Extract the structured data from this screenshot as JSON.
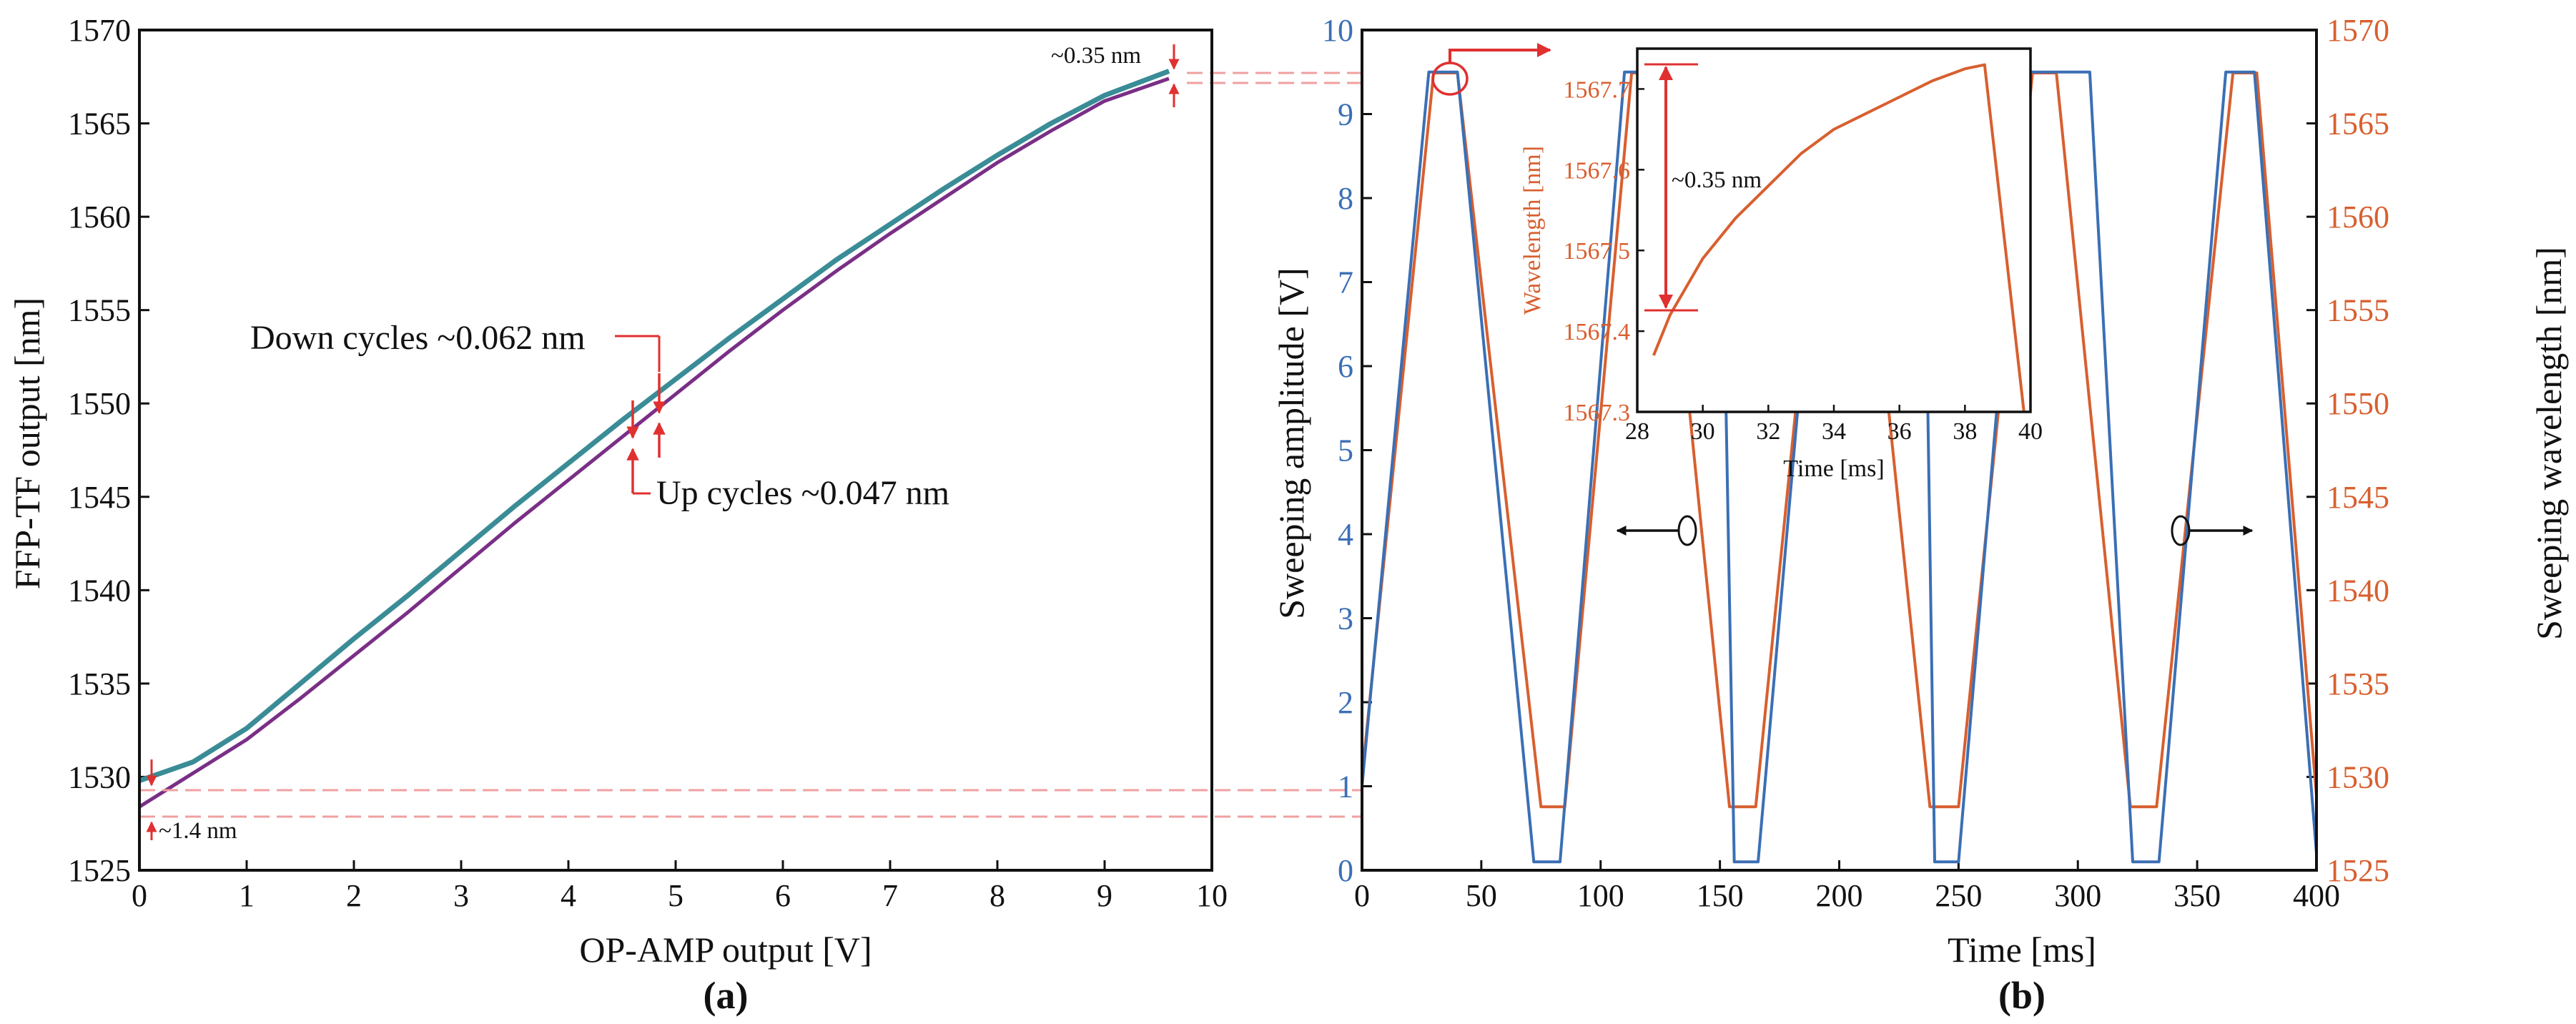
{
  "colors": {
    "blue": "#3b6fb5",
    "orange": "#d85f2f",
    "red": "#e03030",
    "teal": "#3a8c96",
    "purple": "#7a2f86",
    "axis": "#111111"
  },
  "chart_data": [
    {
      "type": "line",
      "panel_label": "(a)",
      "xlabel": "OP-AMP output [V]",
      "ylabel": "FFP-TF output [nm]",
      "xlim": [
        0,
        10
      ],
      "ylim": [
        1525,
        1570
      ],
      "xticks": [
        "0",
        "1",
        "2",
        "3",
        "4",
        "5",
        "6",
        "7",
        "8",
        "9",
        "10"
      ],
      "yticks": [
        "1525",
        "1530",
        "1535",
        "1540",
        "1545",
        "1550",
        "1555",
        "1560",
        "1565",
        "1570"
      ],
      "series": [
        {
          "name": "Down cycles",
          "x": [
            0,
            0.5,
            1,
            1.5,
            2,
            2.5,
            3,
            3.5,
            4,
            4.5,
            5,
            5.5,
            6,
            6.5,
            7,
            7.5,
            8,
            8.5,
            9,
            9.6
          ],
          "y": [
            1529.8,
            1530.8,
            1532.6,
            1535.0,
            1537.4,
            1539.7,
            1542.1,
            1544.5,
            1546.8,
            1549.1,
            1551.3,
            1553.5,
            1555.6,
            1557.7,
            1559.6,
            1561.5,
            1563.3,
            1565.0,
            1566.5,
            1567.8
          ]
        },
        {
          "name": "Up cycles",
          "x": [
            0,
            0.5,
            1,
            1.5,
            2,
            2.5,
            3,
            3.5,
            4,
            4.5,
            5,
            5.5,
            6,
            6.5,
            7,
            7.5,
            8,
            8.5,
            9,
            9.6
          ],
          "y": [
            1528.4,
            1530.2,
            1532.0,
            1534.2,
            1536.5,
            1538.8,
            1541.2,
            1543.6,
            1545.9,
            1548.2,
            1550.5,
            1552.8,
            1555.0,
            1557.1,
            1559.1,
            1561.0,
            1562.9,
            1564.6,
            1566.2,
            1567.4
          ]
        }
      ],
      "annotations": {
        "down": "Down cycles ~0.062 nm",
        "up": "Up cycles ~0.047 nm",
        "top": "~0.35 nm",
        "bottom": "~1.4 nm"
      }
    },
    {
      "type": "line",
      "panel_label": "(b)",
      "xlabel": "Time [ms]",
      "ylabel_left": "Sweeping amplitude [V]",
      "ylabel_right": "Sweeping wavelength [nm]",
      "xlim": [
        0,
        400
      ],
      "ylim_left": [
        0,
        10
      ],
      "ylim_right": [
        1525,
        1570
      ],
      "xticks": [
        "0",
        "50",
        "100",
        "150",
        "200",
        "250",
        "300",
        "350",
        "400"
      ],
      "yticks_left": [
        "0",
        "1",
        "2",
        "3",
        "4",
        "5",
        "6",
        "7",
        "8",
        "9",
        "10"
      ],
      "yticks_right": [
        "1525",
        "1530",
        "1535",
        "1540",
        "1545",
        "1550",
        "1555",
        "1560",
        "1565",
        "1570"
      ],
      "series": [
        {
          "name": "Sweeping amplitude",
          "axis": "left",
          "x": [
            0,
            28,
            40,
            72,
            83,
            110,
            138,
            150,
            156,
            166,
            195,
            223,
            235,
            240,
            250,
            278,
            290,
            305,
            323,
            334,
            362,
            374,
            400
          ],
          "y": [
            1.0,
            9.5,
            9.5,
            0.1,
            0.1,
            9.5,
            9.5,
            9.5,
            0.1,
            0.1,
            9.5,
            9.5,
            9.5,
            0.1,
            0.1,
            9.5,
            9.5,
            9.5,
            0.1,
            0.1,
            9.5,
            9.5,
            0.2
          ]
        },
        {
          "name": "Sweeping wavelength",
          "axis": "right",
          "x": [
            0,
            30,
            40,
            75,
            85,
            113,
            123,
            154,
            165,
            196,
            206,
            238,
            250,
            281,
            291,
            322,
            333,
            365,
            375,
            400
          ],
          "y": [
            1530,
            1567.7,
            1567.7,
            1528.4,
            1528.4,
            1567.7,
            1567.7,
            1528.4,
            1528.4,
            1567.7,
            1567.7,
            1528.4,
            1528.4,
            1567.7,
            1567.7,
            1528.4,
            1528.4,
            1567.7,
            1567.7,
            1529.0
          ]
        }
      ],
      "annotations": {
        "inset_delta": "~0.35 nm"
      },
      "inset": {
        "xlabel": "Time [ms]",
        "ylabel": "Wavelength [nm]",
        "xlim": [
          28,
          40
        ],
        "ylim": [
          1567.3,
          1567.75
        ],
        "xticks": [
          "28",
          "30",
          "32",
          "34",
          "36",
          "38",
          "40"
        ],
        "yticks": [
          "1567.3",
          "1567.4",
          "1567.5",
          "1567.6",
          "1567.7"
        ],
        "series": {
          "x": [
            28.5,
            29,
            30,
            31,
            32,
            33,
            34,
            35,
            36,
            37,
            38,
            38.6,
            39.8
          ],
          "y": [
            1567.37,
            1567.42,
            1567.49,
            1567.54,
            1567.58,
            1567.62,
            1567.65,
            1567.67,
            1567.69,
            1567.71,
            1567.725,
            1567.73,
            1567.3
          ]
        }
      }
    }
  ]
}
